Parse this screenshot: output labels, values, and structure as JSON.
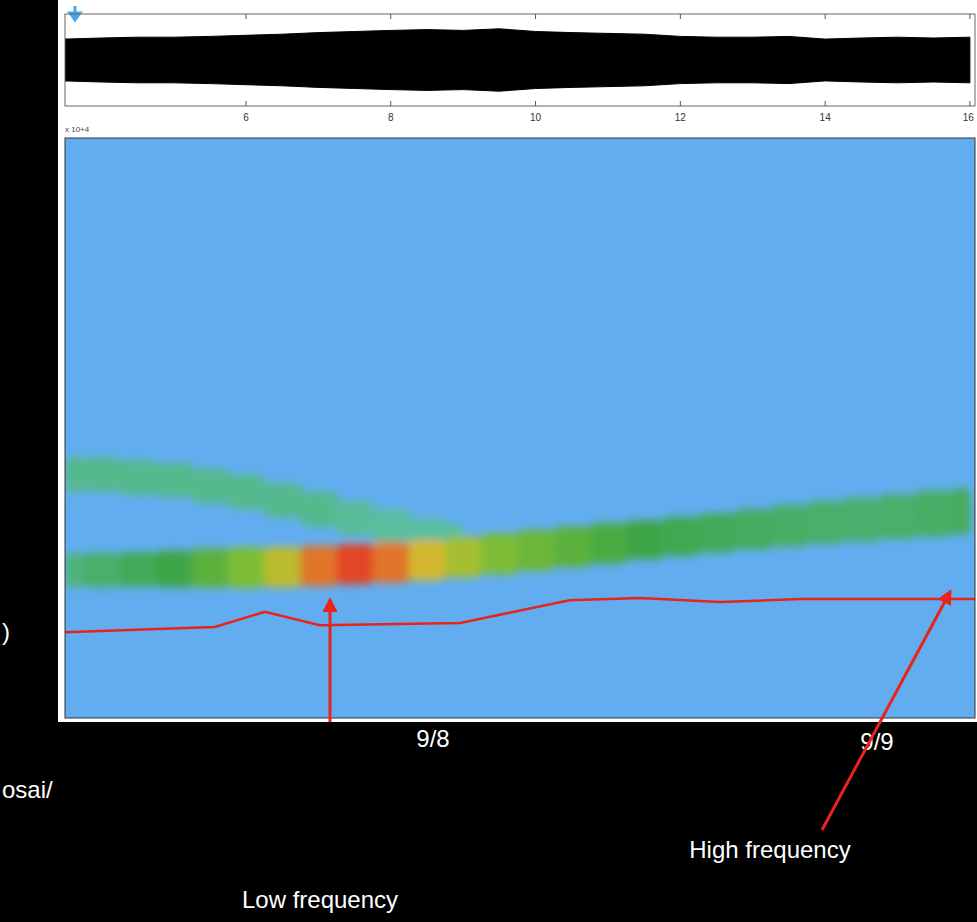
{
  "chart_data": {
    "type": "spectrogram",
    "xlim": [
      3.5,
      16.07
    ],
    "xticks": [
      6,
      8,
      10,
      12,
      14,
      16
    ],
    "scale_label": "x 10+4",
    "waveform": {
      "ylim": [
        -1,
        1
      ],
      "color": "#000000",
      "x": [
        3.5,
        4,
        4.5,
        5,
        5.5,
        6,
        6.5,
        7,
        7.5,
        8,
        8.5,
        9,
        9.5,
        10,
        10.5,
        11,
        11.5,
        12,
        12.5,
        13,
        13.5,
        14,
        14.5,
        15,
        15.5,
        16
      ],
      "envelope": [
        0.55,
        0.58,
        0.6,
        0.6,
        0.62,
        0.65,
        0.68,
        0.72,
        0.75,
        0.78,
        0.8,
        0.78,
        0.82,
        0.75,
        0.72,
        0.7,
        0.68,
        0.62,
        0.6,
        0.6,
        0.62,
        0.55,
        0.58,
        0.6,
        0.58,
        0.6
      ]
    },
    "spectrogram": {
      "ylim": [
        0,
        1
      ],
      "bands": [
        {
          "x": [
            3.5,
            4,
            4.5,
            5,
            5.5,
            6,
            6.5,
            7,
            7.5,
            8,
            8.5,
            9
          ],
          "center": [
            0.42,
            0.42,
            0.415,
            0.41,
            0.4,
            0.39,
            0.375,
            0.36,
            0.345,
            0.33,
            0.315,
            0.305
          ],
          "half_width": [
            0.03,
            0.03,
            0.03,
            0.03,
            0.03,
            0.03,
            0.03,
            0.03,
            0.03,
            0.03,
            0.03,
            0.03
          ],
          "intensity": [
            0.25,
            0.25,
            0.25,
            0.25,
            0.25,
            0.25,
            0.25,
            0.25,
            0.22,
            0.2,
            0.2,
            0.2
          ]
        },
        {
          "x": [
            3.5,
            4,
            4.5,
            5,
            5.5,
            6,
            6.5,
            7,
            7.5,
            8,
            8.5,
            9,
            9.5,
            10,
            10.5,
            11,
            11.5,
            12,
            12.5,
            13,
            13.5,
            14,
            14.5,
            15,
            15.5,
            16
          ],
          "center": [
            0.255,
            0.255,
            0.256,
            0.257,
            0.258,
            0.259,
            0.26,
            0.262,
            0.265,
            0.268,
            0.272,
            0.277,
            0.283,
            0.289,
            0.295,
            0.301,
            0.307,
            0.313,
            0.319,
            0.325,
            0.331,
            0.337,
            0.342,
            0.347,
            0.352,
            0.356
          ],
          "half_width": [
            0.03,
            0.03,
            0.03,
            0.032,
            0.034,
            0.035,
            0.035,
            0.035,
            0.035,
            0.035,
            0.035,
            0.035,
            0.035,
            0.035,
            0.035,
            0.035,
            0.034,
            0.034,
            0.034,
            0.035,
            0.036,
            0.037,
            0.038,
            0.039,
            0.04,
            0.04
          ],
          "intensity": [
            0.3,
            0.35,
            0.4,
            0.45,
            0.55,
            0.65,
            0.8,
            0.95,
            1.0,
            0.95,
            0.85,
            0.75,
            0.65,
            0.6,
            0.55,
            0.5,
            0.45,
            0.42,
            0.4,
            0.38,
            0.36,
            0.35,
            0.34,
            0.35,
            0.36,
            0.38
          ]
        }
      ],
      "line": {
        "color": "#e8231c",
        "x": [
          3.5,
          5.57,
          6.26,
          7.02,
          8.96,
          10.47,
          11.44,
          12.55,
          13.65,
          16.07
        ],
        "values": [
          0.148,
          0.157,
          0.183,
          0.16,
          0.164,
          0.203,
          0.207,
          0.2,
          0.205,
          0.205
        ]
      }
    },
    "annotations": [
      {
        "text": "9/8"
      },
      {
        "text": "9/9"
      },
      {
        "text": "Low frequency"
      },
      {
        "text": "High frequency"
      },
      {
        "text": ")"
      },
      {
        "text": "osai/"
      }
    ]
  }
}
